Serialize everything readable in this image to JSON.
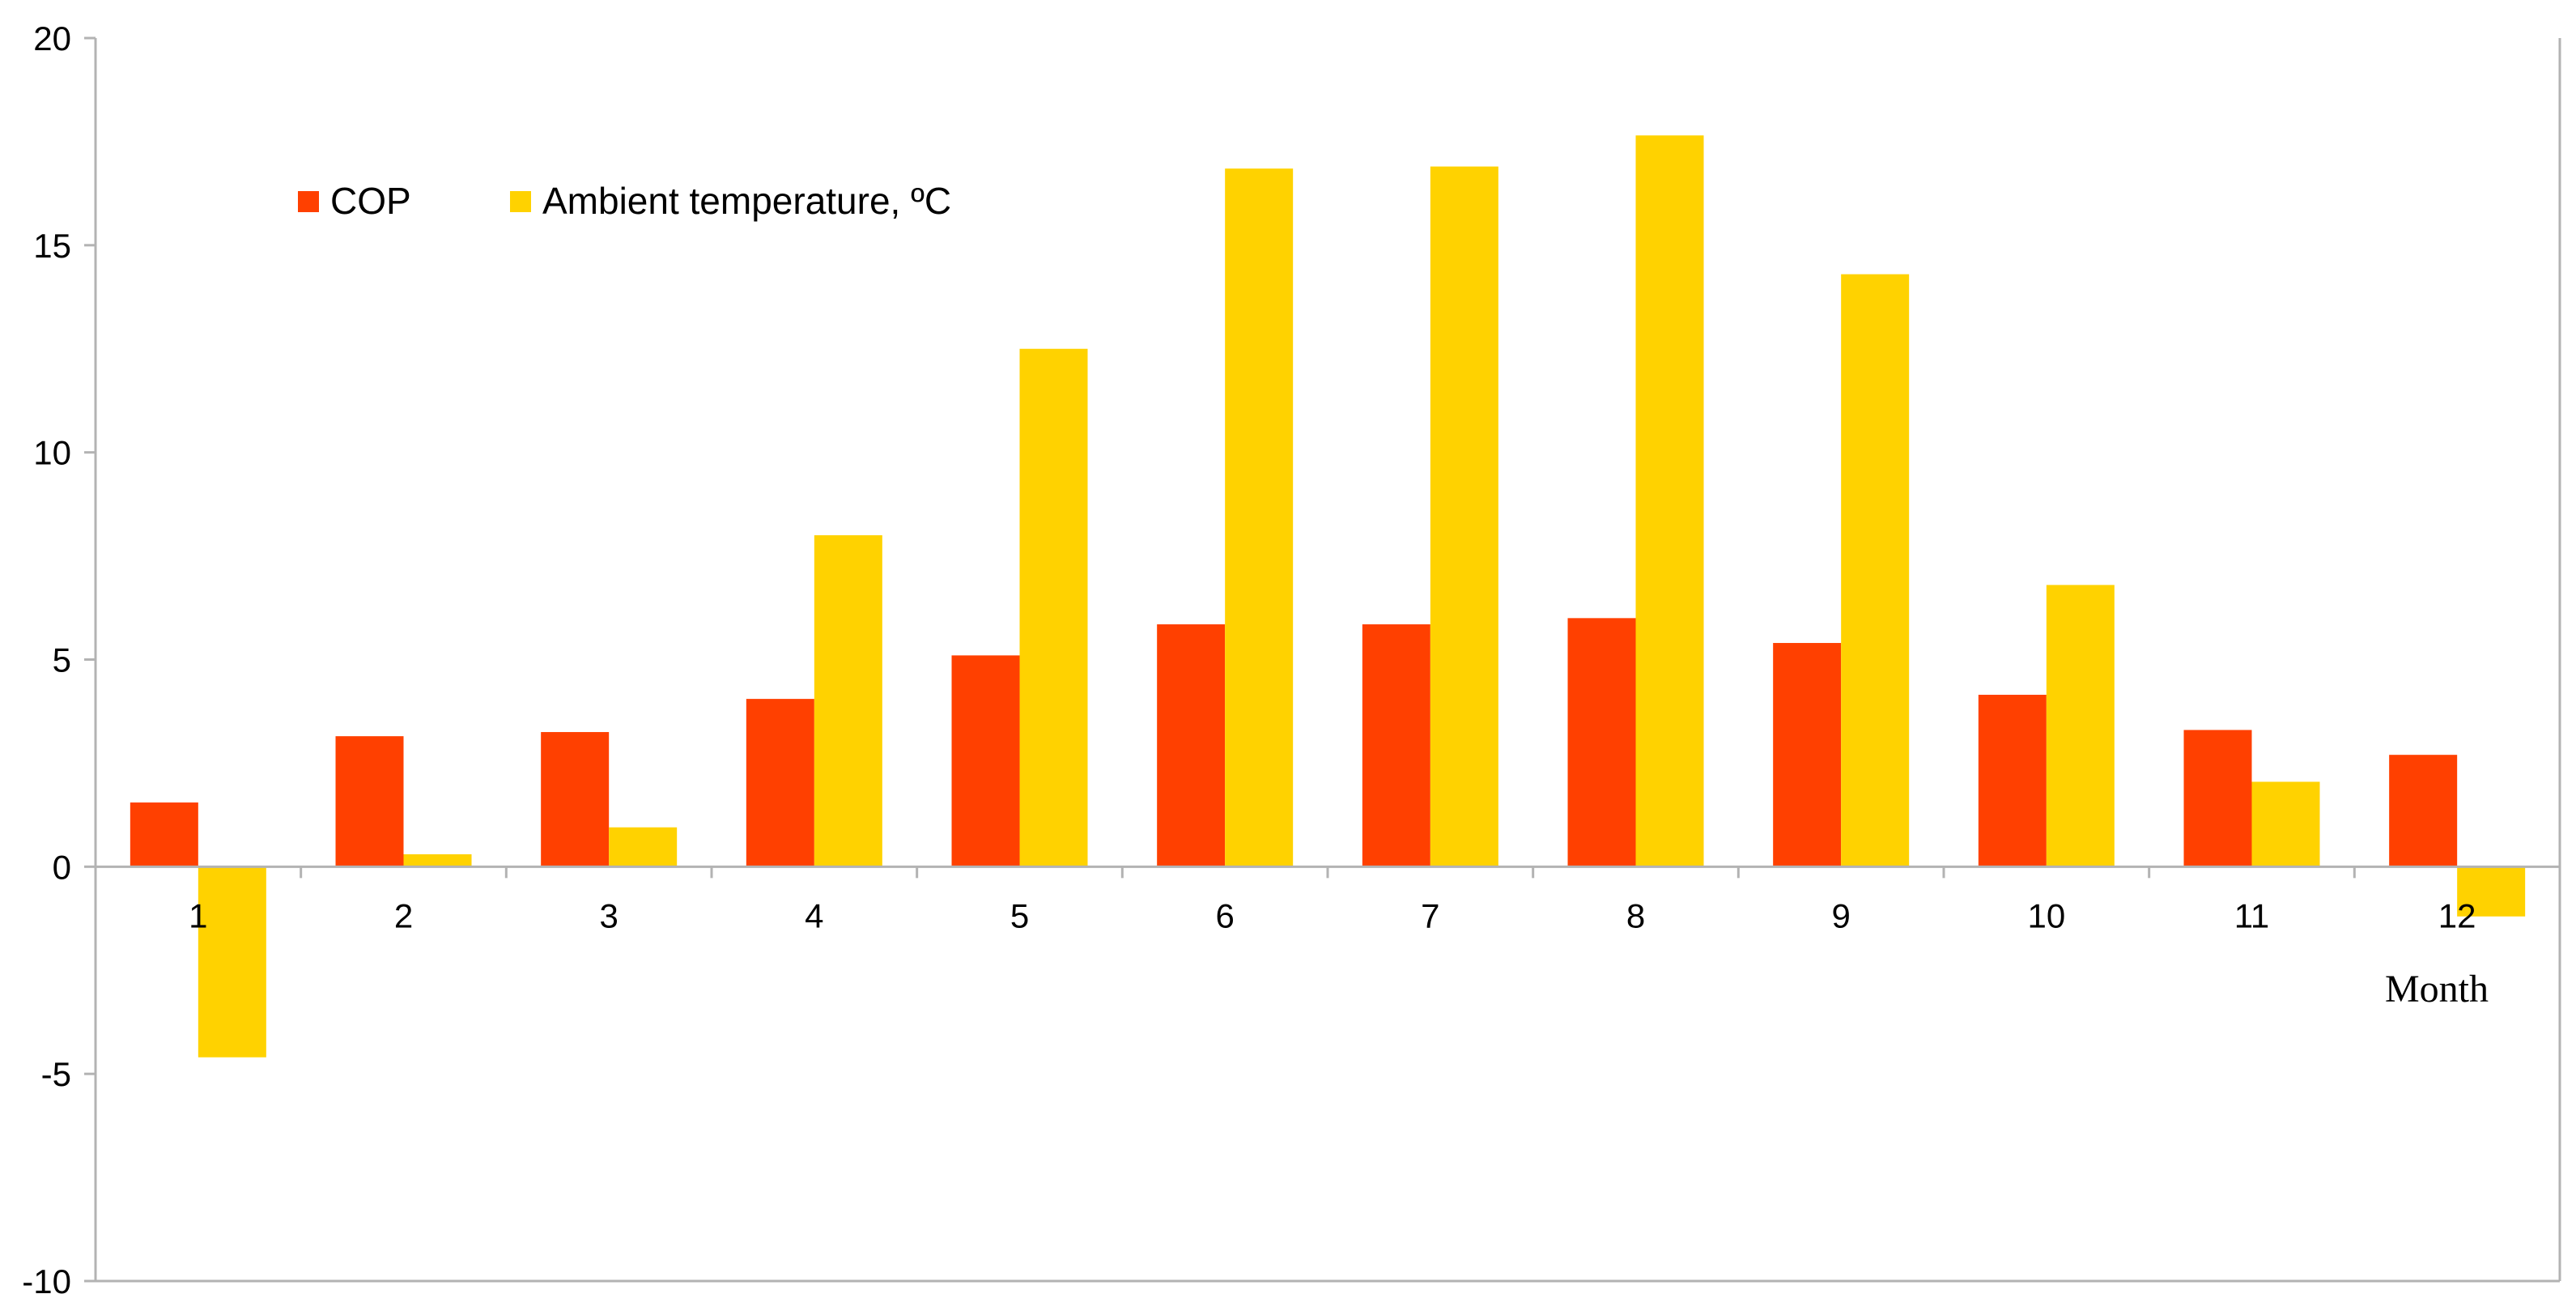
{
  "chart_data": {
    "type": "bar",
    "xlabel": "Month",
    "ylabel": "",
    "ylim": [
      -10,
      20
    ],
    "yticks": [
      20,
      15,
      10,
      5,
      0,
      -5,
      -10
    ],
    "grid": false,
    "legend_position": "top-left",
    "categories": [
      "1",
      "2",
      "3",
      "4",
      "5",
      "6",
      "7",
      "8",
      "9",
      "10",
      "11",
      "12"
    ],
    "series": [
      {
        "name": "COP",
        "color": "#ff4000",
        "values": [
          1.55,
          3.15,
          3.25,
          4.05,
          5.1,
          5.85,
          5.85,
          6.0,
          5.4,
          4.15,
          3.3,
          2.7
        ]
      },
      {
        "name": "Ambient temperature, ºC",
        "color": "#ffd200",
        "values": [
          -4.6,
          0.3,
          0.95,
          8.0,
          12.5,
          16.85,
          16.9,
          17.65,
          14.3,
          6.8,
          2.05,
          -1.2
        ]
      }
    ]
  }
}
